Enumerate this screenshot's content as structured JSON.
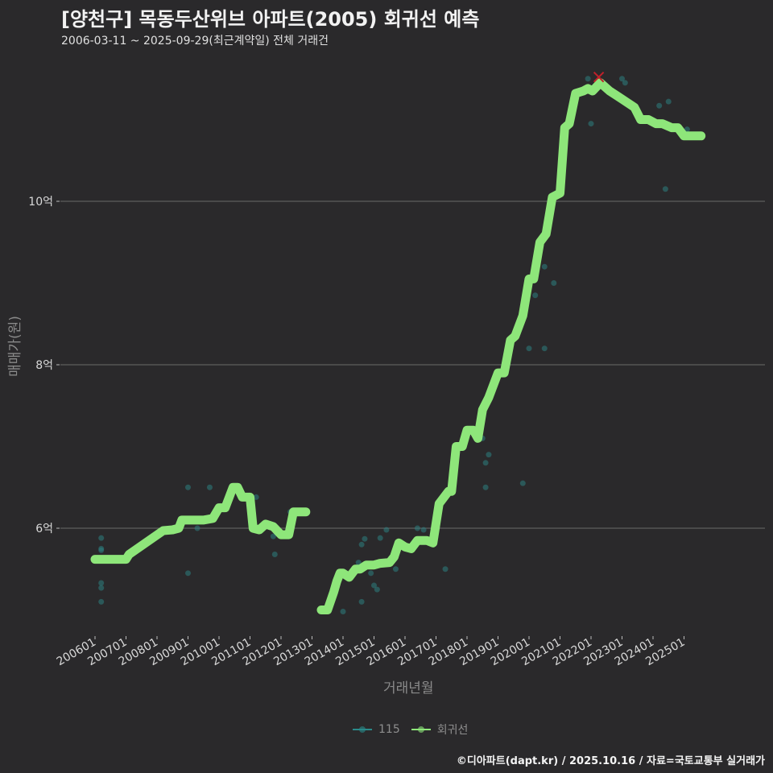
{
  "header": {
    "title": "[양천구] 목동두산위브 아파트(2005) 회귀선 예측",
    "subtitle": "2006-03-11 ~ 2025-09-29(최근계약일) 전체 거래건"
  },
  "axes": {
    "y_label": "매매가(원)",
    "x_label": "거래년월",
    "y_ticks": [
      "6억",
      "8억",
      "10억"
    ],
    "x_ticks": [
      "200601",
      "200701",
      "200801",
      "200901",
      "201001",
      "201101",
      "201201",
      "201301",
      "201401",
      "201501",
      "201601",
      "201701",
      "201801",
      "201901",
      "202001",
      "202101",
      "202201",
      "202301",
      "202401",
      "202501"
    ]
  },
  "legend": {
    "items": [
      {
        "label": "115",
        "color": "#2a8a8a"
      },
      {
        "label": "회귀선",
        "color": "#8ee67a"
      }
    ]
  },
  "footer": {
    "credit": "©디아파트(dapt.kr) / 2025.10.16 / 자료=국토교통부 실거래가"
  },
  "colors": {
    "background": "#2a292b",
    "regression_line": "#8ee67a",
    "scatter": "#2b7f7f",
    "max_marker": "#c0202a",
    "grid": "#6a6a6a"
  },
  "chart_data": {
    "type": "line",
    "title": "[양천구] 목동두산위브 아파트(2005) 회귀선 예측",
    "subtitle": "2006-03-11 ~ 2025-09-29(최근계약일) 전체 거래건",
    "xlabel": "거래년월",
    "ylabel": "매매가(원)",
    "ylim": [
      4.6,
      11.8
    ],
    "y_unit": "억",
    "grid": true,
    "legend_position": "bottom",
    "series": [
      {
        "name": "회귀선",
        "x": [
          2006.0,
          2006.25,
          2006.5,
          2006.75,
          2007.0,
          2007.1,
          2008.2,
          2008.5,
          2008.7,
          2008.8,
          2009.0,
          2009.5,
          2009.8,
          2010.0,
          2010.2,
          2010.45,
          2010.6,
          2010.75,
          2011.0,
          2011.1,
          2011.3,
          2011.5,
          2011.75,
          2012.0,
          2012.25,
          2012.4,
          2012.6,
          2012.8,
          2013.0,
          2013.3,
          2013.5,
          2013.7,
          2013.8,
          2013.9,
          2014.0,
          2014.2,
          2014.4,
          2014.55,
          2014.75,
          2015.0,
          2015.2,
          2015.5,
          2015.65,
          2015.8,
          2016.0,
          2016.2,
          2016.4,
          2016.55,
          2016.7,
          2016.9,
          2017.1,
          2017.3,
          2017.4,
          2017.5,
          2017.65,
          2017.85,
          2018.0,
          2018.2,
          2018.35,
          2018.5,
          2018.7,
          2019.0,
          2019.1,
          2019.2,
          2019.4,
          2019.55,
          2019.8,
          2020.0,
          2020.15,
          2020.35,
          2020.55,
          2020.75,
          2021.0,
          2021.15,
          2021.3,
          2021.5,
          2021.75,
          2021.9,
          2022.05,
          2022.3,
          2022.6,
          2022.8,
          2023.0,
          2023.2,
          2023.4,
          2023.6,
          2023.85,
          2024.1,
          2024.3,
          2024.6,
          2024.8,
          2025.0,
          2025.2,
          2025.35,
          2025.55
        ],
        "values": [
          5.62,
          5.62,
          5.62,
          5.62,
          5.62,
          5.68,
          5.97,
          5.98,
          6.0,
          6.1,
          6.1,
          6.1,
          6.12,
          6.25,
          6.25,
          6.5,
          6.5,
          6.38,
          6.38,
          6.0,
          5.98,
          6.05,
          6.02,
          5.92,
          5.92,
          6.2,
          6.2,
          6.2,
          null,
          5.0,
          5.0,
          5.22,
          5.35,
          5.45,
          5.45,
          5.4,
          5.5,
          5.5,
          5.55,
          5.55,
          5.57,
          5.58,
          5.65,
          5.82,
          5.77,
          5.75,
          5.85,
          5.85,
          5.85,
          5.82,
          6.3,
          6.4,
          6.45,
          6.45,
          7.0,
          7.0,
          7.2,
          7.2,
          7.1,
          7.45,
          7.6,
          7.9,
          7.9,
          7.9,
          8.3,
          8.35,
          8.6,
          9.05,
          9.05,
          9.5,
          9.6,
          10.05,
          10.1,
          10.9,
          10.95,
          11.32,
          11.35,
          11.38,
          11.35,
          11.45,
          11.35,
          11.3,
          11.25,
          11.2,
          11.15,
          11.0,
          11.0,
          10.95,
          10.95,
          10.9,
          10.9,
          10.8,
          10.8,
          10.8,
          10.8
        ]
      },
      {
        "name": "115",
        "type": "scatter",
        "points": [
          [
            2006.2,
            5.88
          ],
          [
            2006.2,
            5.75
          ],
          [
            2006.2,
            5.73
          ],
          [
            2006.2,
            5.33
          ],
          [
            2006.2,
            5.27
          ],
          [
            2006.2,
            5.1
          ],
          [
            2009.0,
            6.5
          ],
          [
            2009.0,
            5.45
          ],
          [
            2009.3,
            6.0
          ],
          [
            2009.7,
            6.5
          ],
          [
            2011.2,
            6.38
          ],
          [
            2011.75,
            5.9
          ],
          [
            2011.8,
            5.68
          ],
          [
            2012.3,
            6.2
          ],
          [
            2014.0,
            4.98
          ],
          [
            2014.5,
            5.58
          ],
          [
            2014.6,
            5.1
          ],
          [
            2014.6,
            5.8
          ],
          [
            2014.7,
            5.87
          ],
          [
            2014.9,
            5.45
          ],
          [
            2015.0,
            5.3
          ],
          [
            2015.1,
            5.25
          ],
          [
            2015.2,
            5.88
          ],
          [
            2015.4,
            5.98
          ],
          [
            2015.5,
            5.58
          ],
          [
            2015.7,
            5.5
          ],
          [
            2016.4,
            6.0
          ],
          [
            2016.6,
            5.98
          ],
          [
            2017.3,
            5.5
          ],
          [
            2018.5,
            7.1
          ],
          [
            2018.6,
            6.8
          ],
          [
            2018.6,
            6.5
          ],
          [
            2018.7,
            6.9
          ],
          [
            2019.3,
            8.1
          ],
          [
            2019.8,
            6.55
          ],
          [
            2020.0,
            8.2
          ],
          [
            2020.2,
            8.85
          ],
          [
            2020.5,
            9.2
          ],
          [
            2020.5,
            8.2
          ],
          [
            2020.8,
            9.0
          ],
          [
            2021.9,
            11.5
          ],
          [
            2022.0,
            10.95
          ],
          [
            2023.0,
            11.5
          ],
          [
            2023.1,
            11.45
          ],
          [
            2023.9,
            10.97
          ],
          [
            2024.2,
            11.17
          ],
          [
            2024.4,
            10.15
          ],
          [
            2024.5,
            11.22
          ],
          [
            2025.1,
            10.88
          ]
        ]
      }
    ],
    "annotations": [
      {
        "type": "max-marker",
        "symbol": "x",
        "x": 2022.25,
        "y": 11.52,
        "color": "#c0202a"
      }
    ]
  }
}
